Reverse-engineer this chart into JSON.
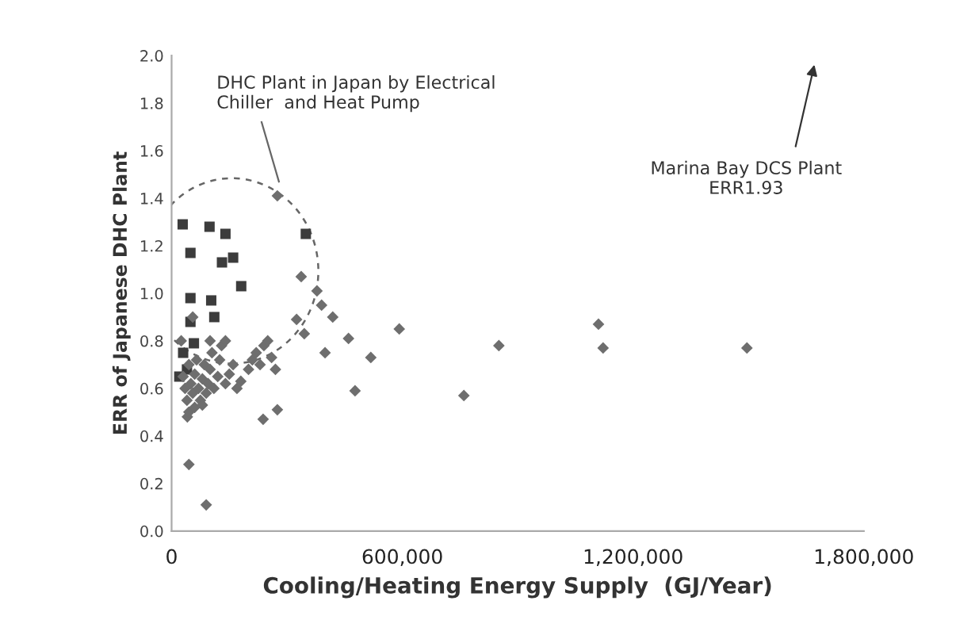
{
  "chart_data": {
    "type": "scatter",
    "xlabel": "Cooling/Heating Energy Supply  (GJ/Year)",
    "ylabel": "ERR of Japanese DHC Plant",
    "xlim": [
      0,
      1800000
    ],
    "ylim": [
      0,
      2.0
    ],
    "xticks": [
      {
        "value": 0,
        "label": "0"
      },
      {
        "value": 600000,
        "label": "600,000"
      },
      {
        "value": 1200000,
        "label": "1,200,000"
      },
      {
        "value": 1800000,
        "label": "1,800,000"
      }
    ],
    "yticks": [
      {
        "value": 0,
        "label": "0.0"
      },
      {
        "value": 0.2,
        "label": "0.2"
      },
      {
        "value": 0.4,
        "label": "0.4"
      },
      {
        "value": 0.6,
        "label": "0.6"
      },
      {
        "value": 0.8,
        "label": "0.8"
      },
      {
        "value": 1.0,
        "label": "1.0"
      },
      {
        "value": 1.2,
        "label": "1.2"
      },
      {
        "value": 1.4,
        "label": "1.4"
      },
      {
        "value": 1.6,
        "label": "1.6"
      },
      {
        "value": 1.8,
        "label": "1.8"
      },
      {
        "value": 2.0,
        "label": "2.0"
      }
    ],
    "grid": false,
    "annotations": [
      "DHC Plant in Japan by Electrical\nChiller  and Heat Pump",
      "Marina Bay DCS Plant\nERR1.93"
    ],
    "series": [
      {
        "color": "#3c3c3c",
        "marker": "square",
        "x": [
          28800,
          98600,
          140000,
          49000,
          131000,
          160000,
          181000,
          49000,
          103000,
          111000,
          49000,
          58000,
          349000,
          20000,
          40000,
          30000
        ],
        "values": [
          1.29,
          1.28,
          1.25,
          1.17,
          1.13,
          1.15,
          1.03,
          0.98,
          0.97,
          0.9,
          0.88,
          0.79,
          1.25,
          0.65,
          0.68,
          0.75
        ]
      },
      {
        "color": "#6e6e6e",
        "marker": "diamond",
        "x": [
          275000,
          337000,
          378000,
          390000,
          419000,
          460000,
          592000,
          399000,
          518000,
          477000,
          325000,
          345000,
          275000,
          238000,
          45000,
          90000,
          41000,
          851000,
          1110000,
          1122000,
          1496000,
          760000,
          30000,
          35000,
          40000,
          45000,
          50000,
          55000,
          60000,
          65000,
          70000,
          75000,
          80000,
          85000,
          90000,
          95000,
          100000,
          105000,
          110000,
          120000,
          125000,
          130000,
          140000,
          150000,
          160000,
          170000,
          180000,
          200000,
          210000,
          220000,
          230000,
          240000,
          250000,
          260000,
          270000,
          45000,
          60000,
          80000,
          25000,
          100000,
          140000,
          55000
        ],
        "values": [
          1.41,
          1.07,
          1.01,
          0.95,
          0.9,
          0.81,
          0.85,
          0.75,
          0.73,
          0.59,
          0.89,
          0.83,
          0.51,
          0.47,
          0.28,
          0.11,
          0.48,
          0.78,
          0.87,
          0.77,
          0.77,
          0.57,
          0.65,
          0.6,
          0.55,
          0.7,
          0.62,
          0.58,
          0.66,
          0.72,
          0.6,
          0.55,
          0.64,
          0.7,
          0.58,
          0.62,
          0.68,
          0.75,
          0.6,
          0.65,
          0.72,
          0.78,
          0.62,
          0.66,
          0.7,
          0.6,
          0.63,
          0.68,
          0.72,
          0.75,
          0.7,
          0.78,
          0.8,
          0.73,
          0.68,
          0.5,
          0.52,
          0.53,
          0.8,
          0.8,
          0.8,
          0.9
        ]
      }
    ]
  }
}
